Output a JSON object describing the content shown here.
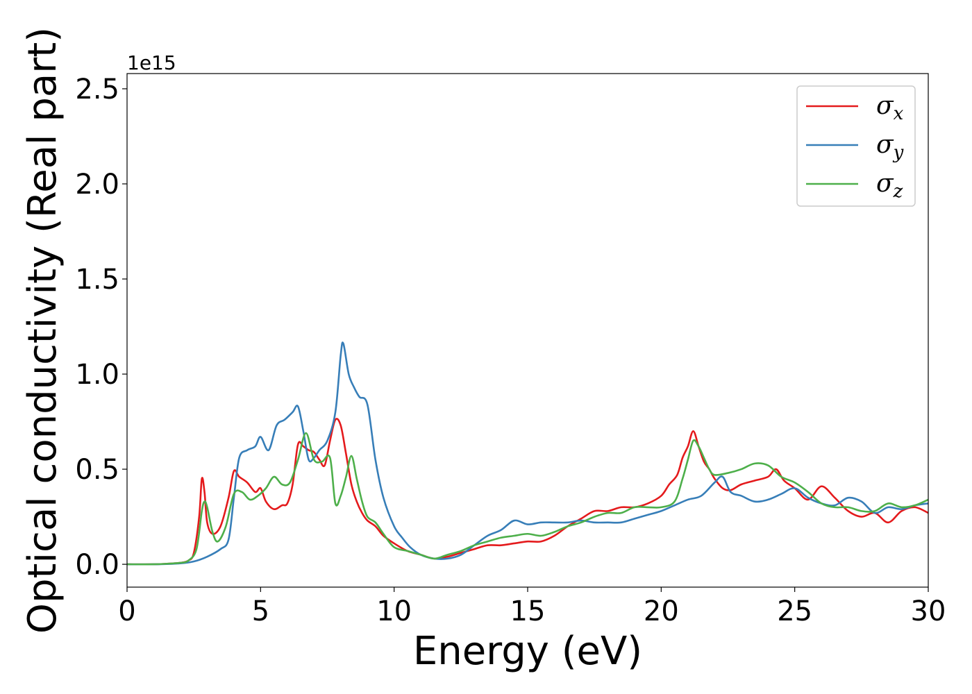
{
  "chart_data": {
    "type": "line",
    "title": "",
    "xlabel": "Energy (eV)",
    "ylabel": "Optical conductivity (Real part)",
    "y_offset_label": "1e15",
    "xlim": [
      0,
      30
    ],
    "ylim": [
      -0.12,
      2.58
    ],
    "x_ticks": [
      0,
      5,
      10,
      15,
      20,
      25,
      30
    ],
    "x_tick_labels": [
      "0",
      "5",
      "10",
      "15",
      "20",
      "25",
      "30"
    ],
    "y_ticks": [
      0.0,
      0.5,
      1.0,
      1.5,
      2.0,
      2.5
    ],
    "y_tick_labels": [
      "0.0",
      "0.5",
      "1.0",
      "1.5",
      "2.0",
      "2.5"
    ],
    "grid": false,
    "legend_position": "top-right",
    "series": [
      {
        "name": "σx",
        "sym": "σ",
        "sub": "x",
        "color": "#e41a1c",
        "x": [
          0,
          1,
          1.5,
          2,
          2.3,
          2.5,
          2.7,
          2.8,
          2.9,
          3.0,
          3.2,
          3.5,
          3.8,
          4.0,
          4.2,
          4.5,
          4.8,
          5.0,
          5.2,
          5.5,
          5.8,
          6.0,
          6.2,
          6.4,
          6.6,
          6.8,
          7.0,
          7.2,
          7.4,
          7.6,
          7.8,
          8.0,
          8.2,
          8.4,
          8.6,
          8.8,
          9.0,
          9.3,
          9.6,
          10.0,
          10.5,
          11.0,
          11.5,
          12.0,
          12.5,
          13.0,
          13.5,
          14.0,
          14.5,
          15.0,
          15.5,
          16.0,
          16.5,
          17.0,
          17.5,
          18.0,
          18.5,
          19.0,
          19.5,
          20.0,
          20.3,
          20.6,
          20.8,
          21.0,
          21.2,
          21.4,
          21.6,
          21.8,
          22.0,
          22.3,
          22.6,
          23.0,
          23.5,
          24.0,
          24.3,
          24.6,
          25.0,
          25.5,
          26.0,
          26.5,
          27.0,
          27.5,
          28.0,
          28.5,
          29.0,
          29.5,
          30.0
        ],
        "y": [
          0.0,
          0.0,
          0.003,
          0.008,
          0.02,
          0.06,
          0.25,
          0.45,
          0.38,
          0.22,
          0.16,
          0.2,
          0.35,
          0.49,
          0.46,
          0.43,
          0.38,
          0.4,
          0.33,
          0.29,
          0.31,
          0.32,
          0.42,
          0.63,
          0.62,
          0.6,
          0.59,
          0.55,
          0.52,
          0.65,
          0.76,
          0.73,
          0.58,
          0.42,
          0.33,
          0.27,
          0.23,
          0.2,
          0.15,
          0.11,
          0.07,
          0.05,
          0.03,
          0.04,
          0.06,
          0.08,
          0.1,
          0.1,
          0.11,
          0.12,
          0.12,
          0.15,
          0.2,
          0.24,
          0.28,
          0.28,
          0.3,
          0.3,
          0.32,
          0.36,
          0.42,
          0.47,
          0.56,
          0.62,
          0.7,
          0.62,
          0.54,
          0.5,
          0.45,
          0.4,
          0.39,
          0.42,
          0.44,
          0.46,
          0.5,
          0.44,
          0.4,
          0.34,
          0.41,
          0.35,
          0.28,
          0.25,
          0.27,
          0.22,
          0.28,
          0.3,
          0.27
        ]
      },
      {
        "name": "σy",
        "sym": "σ",
        "sub": "y",
        "color": "#377eb8",
        "x": [
          0,
          1,
          2,
          2.5,
          3.0,
          3.5,
          3.8,
          4.0,
          4.2,
          4.5,
          4.8,
          5.0,
          5.3,
          5.6,
          5.9,
          6.2,
          6.4,
          6.6,
          6.8,
          7.0,
          7.2,
          7.5,
          7.8,
          8.0,
          8.1,
          8.3,
          8.5,
          8.7,
          9.0,
          9.3,
          9.6,
          10.0,
          10.3,
          10.6,
          11.0,
          11.5,
          12.0,
          12.5,
          13.0,
          13.5,
          14.0,
          14.5,
          15.0,
          15.5,
          16.0,
          16.5,
          17.0,
          17.5,
          18.0,
          18.5,
          19.0,
          19.5,
          20.0,
          20.5,
          21.0,
          21.5,
          22.0,
          22.3,
          22.6,
          23.0,
          23.5,
          24.0,
          24.5,
          25.0,
          25.5,
          26.0,
          26.5,
          27.0,
          27.5,
          28.0,
          28.5,
          29.0,
          29.5,
          30.0
        ],
        "y": [
          0.0,
          0.0,
          0.005,
          0.015,
          0.04,
          0.08,
          0.13,
          0.35,
          0.56,
          0.6,
          0.62,
          0.67,
          0.6,
          0.73,
          0.76,
          0.8,
          0.83,
          0.7,
          0.55,
          0.56,
          0.6,
          0.65,
          0.8,
          1.1,
          1.16,
          1.0,
          0.93,
          0.88,
          0.84,
          0.55,
          0.35,
          0.2,
          0.14,
          0.09,
          0.05,
          0.03,
          0.03,
          0.05,
          0.1,
          0.15,
          0.18,
          0.23,
          0.21,
          0.22,
          0.22,
          0.22,
          0.23,
          0.22,
          0.22,
          0.22,
          0.24,
          0.26,
          0.28,
          0.31,
          0.34,
          0.36,
          0.43,
          0.46,
          0.38,
          0.36,
          0.33,
          0.34,
          0.37,
          0.4,
          0.35,
          0.32,
          0.31,
          0.35,
          0.33,
          0.27,
          0.3,
          0.29,
          0.31,
          0.32
        ]
      },
      {
        "name": "σz",
        "sym": "σ",
        "sub": "z",
        "color": "#4daf4a",
        "x": [
          0,
          1,
          1.5,
          2,
          2.3,
          2.6,
          2.8,
          2.9,
          3.0,
          3.2,
          3.4,
          3.7,
          4.0,
          4.3,
          4.6,
          4.9,
          5.2,
          5.5,
          5.8,
          6.1,
          6.4,
          6.7,
          7.0,
          7.3,
          7.6,
          7.8,
          8.0,
          8.2,
          8.4,
          8.6,
          8.8,
          9.0,
          9.3,
          9.6,
          10.0,
          10.5,
          11.0,
          11.5,
          12.0,
          12.5,
          13.0,
          13.5,
          14.0,
          14.5,
          15.0,
          15.5,
          16.0,
          16.5,
          17.0,
          17.5,
          18.0,
          18.5,
          19.0,
          19.5,
          20.0,
          20.5,
          20.8,
          21.0,
          21.2,
          21.4,
          21.6,
          21.8,
          22.0,
          22.5,
          23.0,
          23.5,
          24.0,
          24.5,
          25.0,
          25.5,
          26.0,
          26.5,
          27.0,
          27.5,
          28.0,
          28.5,
          29.0,
          29.5,
          30.0
        ],
        "y": [
          0.0,
          0.0,
          0.003,
          0.008,
          0.02,
          0.08,
          0.28,
          0.33,
          0.3,
          0.17,
          0.12,
          0.2,
          0.37,
          0.38,
          0.34,
          0.36,
          0.4,
          0.46,
          0.42,
          0.43,
          0.55,
          0.69,
          0.55,
          0.54,
          0.56,
          0.32,
          0.36,
          0.46,
          0.57,
          0.45,
          0.33,
          0.25,
          0.22,
          0.16,
          0.09,
          0.07,
          0.05,
          0.03,
          0.05,
          0.07,
          0.1,
          0.12,
          0.14,
          0.15,
          0.16,
          0.15,
          0.17,
          0.2,
          0.22,
          0.25,
          0.27,
          0.27,
          0.3,
          0.3,
          0.3,
          0.33,
          0.45,
          0.55,
          0.65,
          0.62,
          0.56,
          0.5,
          0.47,
          0.48,
          0.5,
          0.53,
          0.52,
          0.46,
          0.43,
          0.38,
          0.32,
          0.3,
          0.3,
          0.28,
          0.28,
          0.32,
          0.3,
          0.31,
          0.34
        ]
      }
    ]
  }
}
